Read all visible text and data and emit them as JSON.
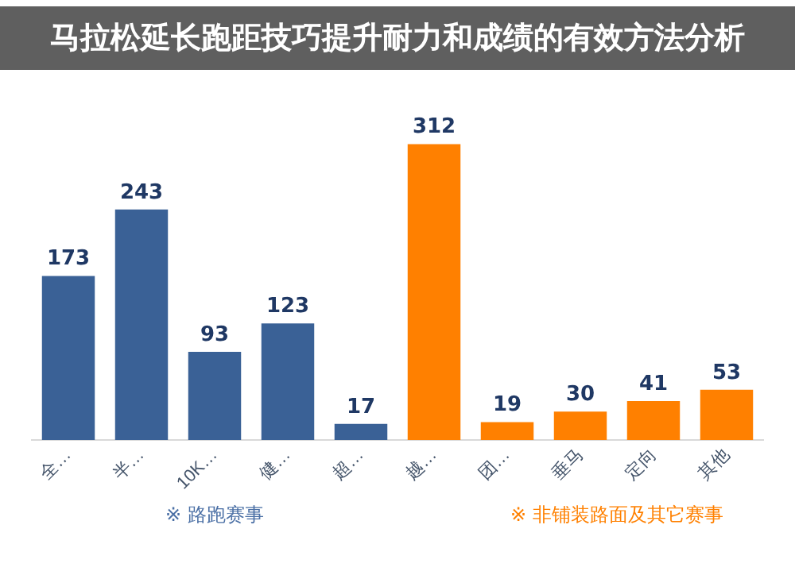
{
  "chart_data": {
    "type": "bar",
    "title": "马拉松延长跑距技巧提升耐力和成绩的有效方法分析",
    "categories": [
      "全…",
      "半…",
      "10K…",
      "健…",
      "超…",
      "越…",
      "团…",
      "垂马",
      "定向",
      "其他"
    ],
    "values": [
      173,
      243,
      93,
      123,
      17,
      312,
      19,
      30,
      41,
      53
    ],
    "colors": [
      "#3a6196",
      "#3a6196",
      "#3a6196",
      "#3a6196",
      "#3a6196",
      "#ff8000",
      "#ff8000",
      "#ff8000",
      "#ff8000",
      "#ff8000"
    ],
    "data_labels": true,
    "grid": false,
    "legend": false,
    "annotations": [
      "※ 路跑赛事",
      "※ 非铺装路面及其它赛事"
    ]
  }
}
